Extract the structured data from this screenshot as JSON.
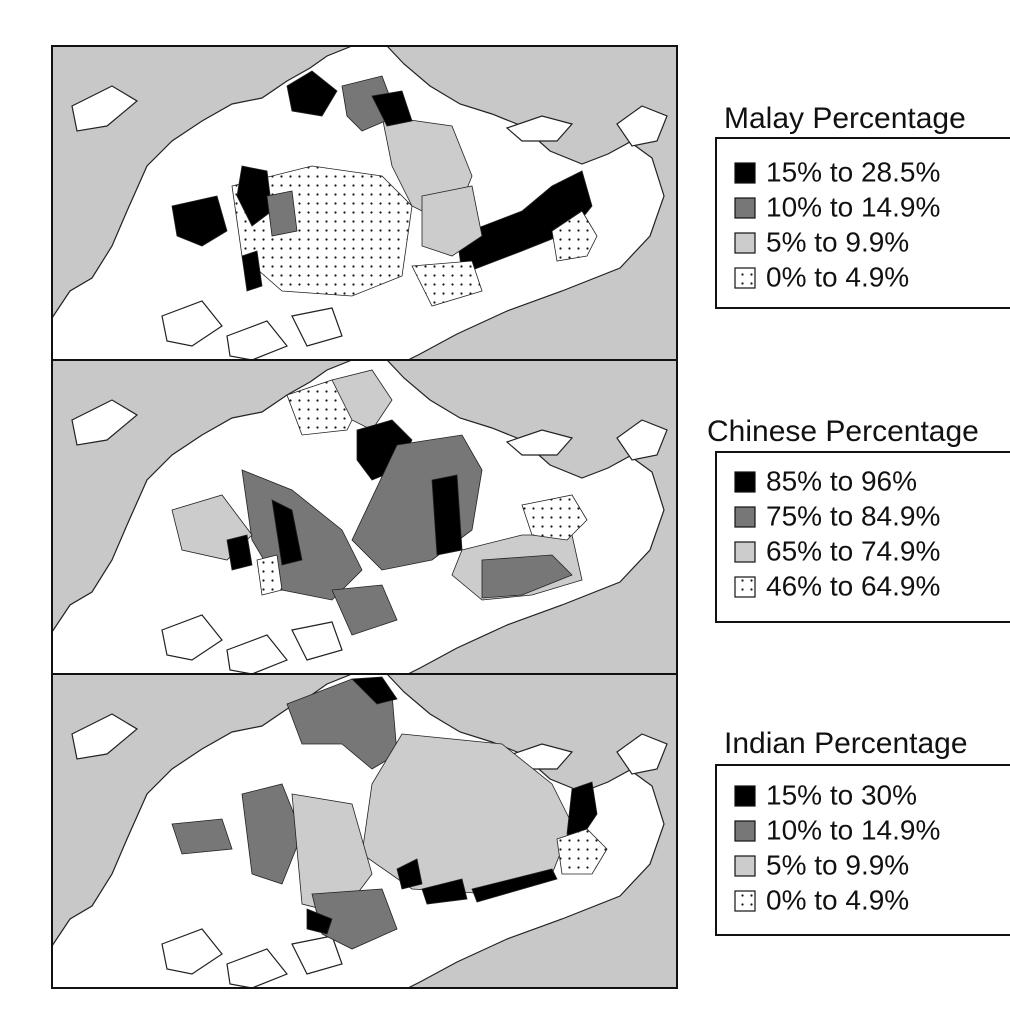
{
  "panels": [
    {
      "title": "Malay Percentage",
      "legend": [
        "15% to 28.5%",
        "10% to 14.9%",
        "5% to 9.9%",
        "0% to 4.9%"
      ]
    },
    {
      "title": "Chinese Percentage",
      "legend": [
        "85% to 96%",
        "75% to 84.9%",
        "65% to 74.9%",
        "46% to 64.9%"
      ]
    },
    {
      "title": "Indian Percentage",
      "legend": [
        "15% to 30%",
        "10% to 14.9%",
        "5% to 9.9%",
        "0% to 4.9%"
      ]
    }
  ]
}
